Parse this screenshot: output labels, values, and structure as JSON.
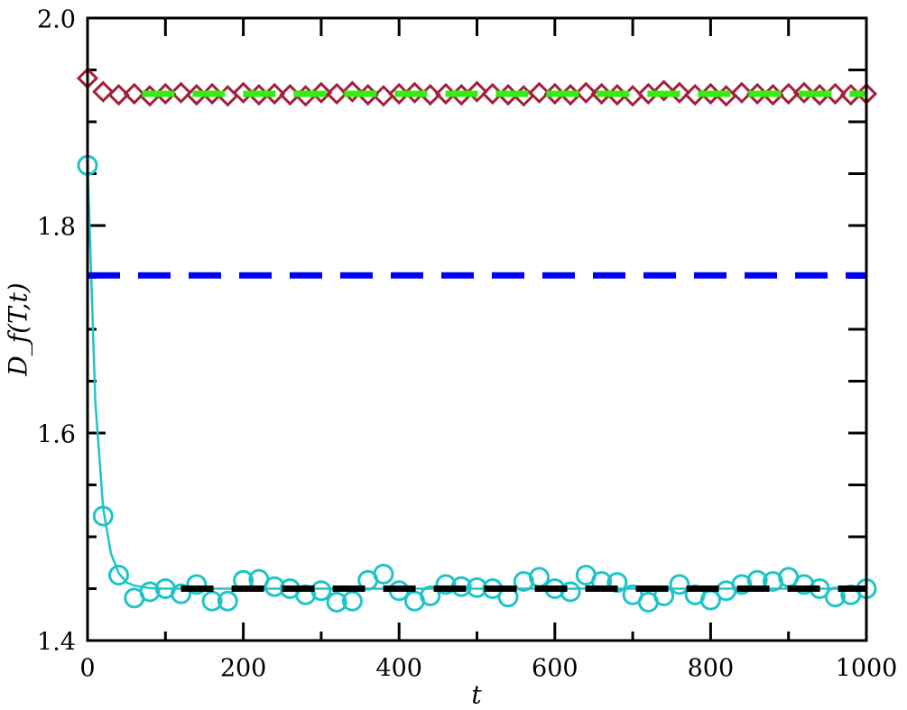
{
  "chart_data": {
    "type": "line",
    "xlabel": "t",
    "ylabel": "D_f(T,t)",
    "xlim": [
      0,
      1000
    ],
    "ylim": [
      1.4,
      2.0
    ],
    "xticks": [
      0,
      200,
      400,
      600,
      800,
      1000
    ],
    "yticks": [
      {
        "value": 1.4,
        "label": "1.4"
      },
      1.6,
      1.8,
      {
        "value": 2.0,
        "label": "2.0"
      }
    ],
    "xminor": [
      100,
      300,
      500,
      700,
      900
    ],
    "yminor": [
      1.45,
      1.5,
      1.55,
      1.65,
      1.7,
      1.75,
      1.85,
      1.9,
      1.95
    ],
    "series": [
      {
        "color": "#a31f3c",
        "marker": "diamond",
        "line": "none",
        "x": [
          0,
          20,
          40,
          60,
          80,
          100,
          120,
          140,
          160,
          180,
          200,
          220,
          240,
          260,
          280,
          300,
          320,
          340,
          360,
          380,
          400,
          420,
          440,
          460,
          480,
          500,
          520,
          540,
          560,
          580,
          600,
          620,
          640,
          660,
          680,
          700,
          720,
          740,
          760,
          780,
          800,
          820,
          840,
          860,
          880,
          900,
          920,
          940,
          960,
          980,
          1000
        ],
        "values": [
          1.942,
          1.929,
          1.926,
          1.927,
          1.925,
          1.927,
          1.928,
          1.926,
          1.927,
          1.925,
          1.928,
          1.926,
          1.927,
          1.926,
          1.925,
          1.928,
          1.927,
          1.929,
          1.926,
          1.925,
          1.927,
          1.928,
          1.926,
          1.927,
          1.926,
          1.929,
          1.927,
          1.926,
          1.925,
          1.928,
          1.927,
          1.926,
          1.928,
          1.927,
          1.926,
          1.925,
          1.927,
          1.93,
          1.928,
          1.926,
          1.927,
          1.925,
          1.928,
          1.927,
          1.926,
          1.927,
          1.928,
          1.926,
          1.927,
          1.926,
          1.927
        ]
      },
      {
        "color": "#1ec4c8",
        "marker": "none",
        "line": "solid",
        "x": [
          0,
          10,
          20,
          30,
          40,
          50,
          60,
          80,
          100,
          1000
        ],
        "values": [
          1.86,
          1.63,
          1.528,
          1.484,
          1.465,
          1.456,
          1.453,
          1.4505,
          1.45,
          1.45
        ]
      },
      {
        "color": "#1ec4c8",
        "marker": "circle",
        "line": "none",
        "x": [
          0,
          20,
          40,
          60,
          80,
          100,
          120,
          140,
          160,
          180,
          200,
          220,
          240,
          260,
          280,
          300,
          320,
          340,
          360,
          380,
          400,
          420,
          440,
          460,
          480,
          500,
          520,
          540,
          560,
          580,
          600,
          620,
          640,
          660,
          680,
          700,
          720,
          740,
          760,
          780,
          800,
          820,
          840,
          860,
          880,
          900,
          920,
          940,
          960,
          980,
          1000
        ],
        "values": [
          1.858,
          1.52,
          1.463,
          1.441,
          1.447,
          1.45,
          1.445,
          1.454,
          1.438,
          1.438,
          1.458,
          1.459,
          1.452,
          1.45,
          1.444,
          1.448,
          1.437,
          1.438,
          1.458,
          1.464,
          1.448,
          1.438,
          1.443,
          1.454,
          1.452,
          1.451,
          1.45,
          1.442,
          1.457,
          1.461,
          1.45,
          1.447,
          1.463,
          1.457,
          1.456,
          1.444,
          1.437,
          1.443,
          1.454,
          1.444,
          1.439,
          1.448,
          1.454,
          1.458,
          1.457,
          1.461,
          1.454,
          1.45,
          1.442,
          1.444,
          1.45
        ]
      },
      {
        "color": "#0000f0",
        "marker": "none",
        "line": "dashed",
        "x": [
          0,
          1000
        ],
        "values": [
          1.752,
          1.752
        ]
      },
      {
        "color": "#33ee11",
        "marker": "none",
        "line": "dashed",
        "x": [
          70,
          1000
        ],
        "values": [
          1.927,
          1.927
        ]
      },
      {
        "color": "#000000",
        "marker": "none",
        "line": "dashed",
        "x": [
          120,
          1000
        ],
        "values": [
          1.45,
          1.45
        ]
      }
    ]
  }
}
